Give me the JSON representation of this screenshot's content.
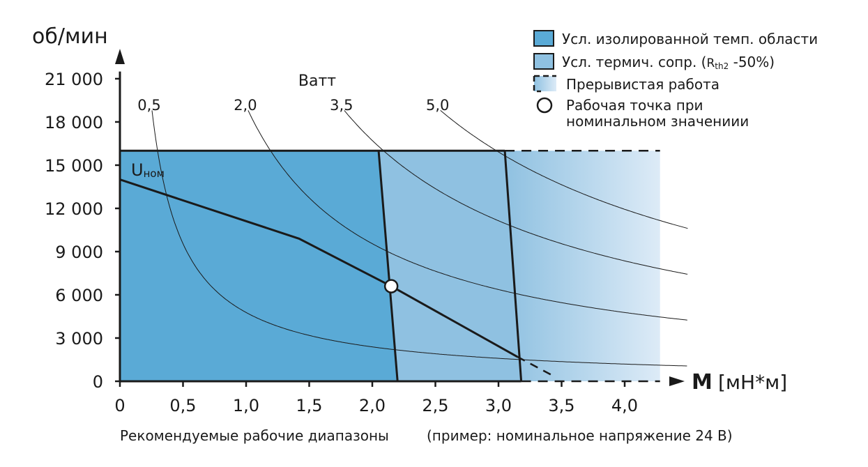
{
  "chart_data": {
    "type": "area",
    "title": "",
    "ylabel": "об/мин",
    "xlabel_symbol": "M",
    "xlabel_unit": "[мН*м]",
    "xlim": [
      0,
      4.3
    ],
    "ylim": [
      0,
      22000
    ],
    "x_ticks": [
      0,
      0.5,
      1.0,
      1.5,
      2.0,
      2.5,
      3.0,
      3.5,
      4.0
    ],
    "x_tick_labels": [
      "0",
      "0,5",
      "1,0",
      "1,5",
      "2,0",
      "2,5",
      "3,0",
      "3,5",
      "4,0"
    ],
    "y_ticks": [
      0,
      3000,
      6000,
      9000,
      12000,
      15000,
      18000,
      21000
    ],
    "y_tick_labels": [
      "0",
      "3 000",
      "6 000",
      "9 000",
      "12 000",
      "15 000",
      "18 000",
      "21 000"
    ],
    "speed_limit": 16000,
    "region_continuous": {
      "name": "Усл. изолированной темп. области",
      "boundary": [
        [
          2.05,
          16000
        ],
        [
          2.2,
          0
        ]
      ],
      "color": "#5aaad6"
    },
    "region_thermal": {
      "name": "Усл. термич. сопр.",
      "boundary": [
        [
          3.05,
          16000
        ],
        [
          3.18,
          0
        ]
      ],
      "color": "#8fc1e1"
    },
    "region_intermittent": {
      "name": "Прерывистая работа",
      "x_max": 4.28,
      "color_start": "#8fc1e1",
      "color_end": "#ddebf7"
    },
    "motor_line": {
      "name": "Uном",
      "label_main": "U",
      "label_sub": "ном",
      "points": [
        [
          0,
          14000
        ],
        [
          1.42,
          9900
        ],
        [
          2.15,
          6600
        ],
        [
          3.15,
          1700
        ]
      ],
      "dashed_points": [
        [
          3.15,
          1700
        ],
        [
          3.45,
          300
        ]
      ]
    },
    "operating_point": {
      "name": "Рабочая точка при номинальном значениии",
      "x": 2.15,
      "y": 6600
    },
    "power_curves": {
      "title": "Ватт",
      "series": [
        {
          "name": "0,5",
          "watts": 0.5
        },
        {
          "name": "2,0",
          "watts": 2.0
        },
        {
          "name": "3,5",
          "watts": 3.5
        },
        {
          "name": "5,0",
          "watts": 5.0
        }
      ]
    },
    "legend": {
      "position": "top-right",
      "items": [
        {
          "label": "Усл. изолированной темп. области"
        },
        {
          "label": "Усл. термич. сопр. (",
          "sub_main": "R",
          "sub_small": "th2",
          "suffix": " -50%)"
        },
        {
          "label": "Прерывистая работа"
        },
        {
          "label_line1": "Рабочая точка при",
          "label_line2": "номинальном значениии"
        }
      ]
    },
    "caption_main": "Рекомендуемые рабочие диапазоны",
    "caption_note": "(пример: номинальное напряжение 24 В)"
  }
}
